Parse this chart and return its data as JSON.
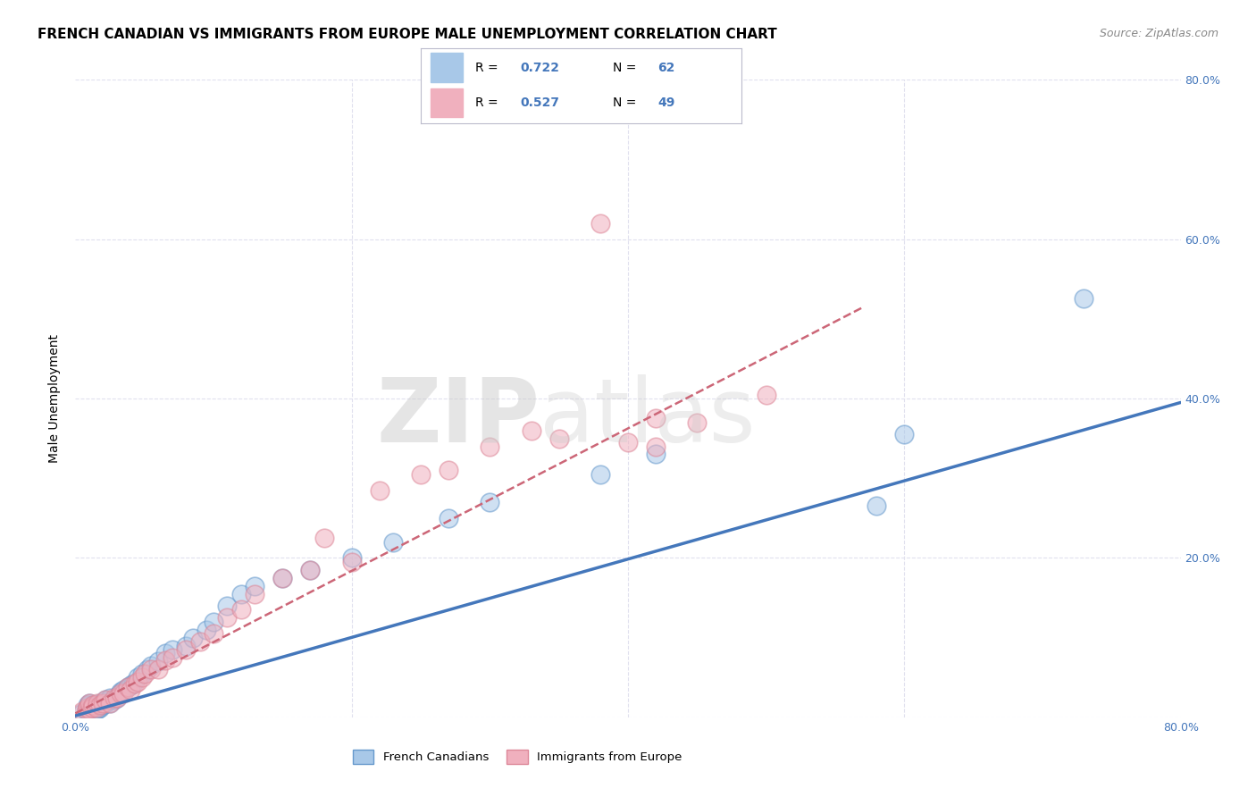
{
  "title": "FRENCH CANADIAN VS IMMIGRANTS FROM EUROPE MALE UNEMPLOYMENT CORRELATION CHART",
  "source": "Source: ZipAtlas.com",
  "ylabel": "Male Unemployment",
  "x_min": 0.0,
  "x_max": 0.8,
  "y_min": 0.0,
  "y_max": 0.8,
  "x_ticks": [
    0.0,
    0.2,
    0.4,
    0.6,
    0.8
  ],
  "x_tick_labels": [
    "0.0%",
    "",
    "",
    "",
    "80.0%"
  ],
  "y_ticks": [
    0.0,
    0.2,
    0.4,
    0.6,
    0.8
  ],
  "y_tick_labels": [
    "",
    "",
    "",
    "",
    ""
  ],
  "right_y_ticks": [
    0.2,
    0.4,
    0.6,
    0.8
  ],
  "right_y_tick_labels": [
    "20.0%",
    "40.0%",
    "60.0%",
    "80.0%"
  ],
  "blue_color": "#a8c8e8",
  "pink_color": "#f0b0be",
  "blue_edge_color": "#6699cc",
  "pink_edge_color": "#dd8899",
  "blue_line_color": "#4477bb",
  "pink_line_color": "#cc6677",
  "grid_color": "#e0e0ee",
  "background_color": "#ffffff",
  "title_fontsize": 11,
  "source_fontsize": 9,
  "axis_tick_fontsize": 9,
  "label_fontsize": 10,
  "legend_r1": "0.722",
  "legend_n1": "62",
  "legend_r2": "0.527",
  "legend_n2": "49",
  "legend_x_label": "French Canadians",
  "legend_y_label": "Immigrants from Europe",
  "blue_scatter_x": [
    0.005,
    0.008,
    0.008,
    0.009,
    0.009,
    0.01,
    0.01,
    0.01,
    0.01,
    0.01,
    0.01,
    0.012,
    0.012,
    0.013,
    0.013,
    0.015,
    0.015,
    0.016,
    0.016,
    0.017,
    0.018,
    0.018,
    0.019,
    0.02,
    0.022,
    0.022,
    0.023,
    0.025,
    0.025,
    0.028,
    0.03,
    0.032,
    0.033,
    0.035,
    0.038,
    0.04,
    0.042,
    0.045,
    0.048,
    0.052,
    0.055,
    0.06,
    0.065,
    0.07,
    0.08,
    0.085,
    0.095,
    0.1,
    0.11,
    0.12,
    0.13,
    0.15,
    0.17,
    0.2,
    0.23,
    0.27,
    0.3,
    0.38,
    0.42,
    0.58,
    0.6,
    0.73
  ],
  "blue_scatter_y": [
    0.005,
    0.008,
    0.01,
    0.012,
    0.015,
    0.005,
    0.008,
    0.01,
    0.012,
    0.015,
    0.018,
    0.008,
    0.012,
    0.01,
    0.015,
    0.01,
    0.015,
    0.01,
    0.015,
    0.012,
    0.012,
    0.018,
    0.015,
    0.015,
    0.018,
    0.022,
    0.02,
    0.018,
    0.025,
    0.022,
    0.025,
    0.03,
    0.032,
    0.035,
    0.038,
    0.04,
    0.042,
    0.05,
    0.055,
    0.06,
    0.065,
    0.07,
    0.08,
    0.085,
    0.09,
    0.1,
    0.11,
    0.12,
    0.14,
    0.155,
    0.165,
    0.175,
    0.185,
    0.2,
    0.22,
    0.25,
    0.27,
    0.305,
    0.33,
    0.265,
    0.355,
    0.525
  ],
  "pink_scatter_x": [
    0.005,
    0.008,
    0.009,
    0.01,
    0.01,
    0.012,
    0.013,
    0.015,
    0.016,
    0.018,
    0.02,
    0.022,
    0.025,
    0.028,
    0.03,
    0.033,
    0.035,
    0.038,
    0.04,
    0.043,
    0.045,
    0.048,
    0.05,
    0.055,
    0.06,
    0.065,
    0.07,
    0.08,
    0.09,
    0.1,
    0.11,
    0.12,
    0.13,
    0.15,
    0.17,
    0.18,
    0.2,
    0.22,
    0.25,
    0.27,
    0.3,
    0.33,
    0.35,
    0.38,
    0.4,
    0.42,
    0.45,
    0.5,
    0.42
  ],
  "pink_scatter_y": [
    0.008,
    0.01,
    0.012,
    0.01,
    0.018,
    0.012,
    0.015,
    0.012,
    0.018,
    0.015,
    0.018,
    0.022,
    0.018,
    0.025,
    0.025,
    0.03,
    0.03,
    0.038,
    0.035,
    0.042,
    0.045,
    0.05,
    0.055,
    0.06,
    0.06,
    0.072,
    0.075,
    0.085,
    0.095,
    0.105,
    0.125,
    0.135,
    0.155,
    0.175,
    0.185,
    0.225,
    0.195,
    0.285,
    0.305,
    0.31,
    0.34,
    0.36,
    0.35,
    0.62,
    0.345,
    0.375,
    0.37,
    0.405,
    0.34
  ],
  "blue_line_x": [
    0.0,
    0.8
  ],
  "blue_line_y": [
    0.002,
    0.395
  ],
  "pink_line_x": [
    0.0,
    0.8
  ],
  "pink_line_y": [
    0.005,
    0.72
  ],
  "pink_line_end_x": 0.57
}
